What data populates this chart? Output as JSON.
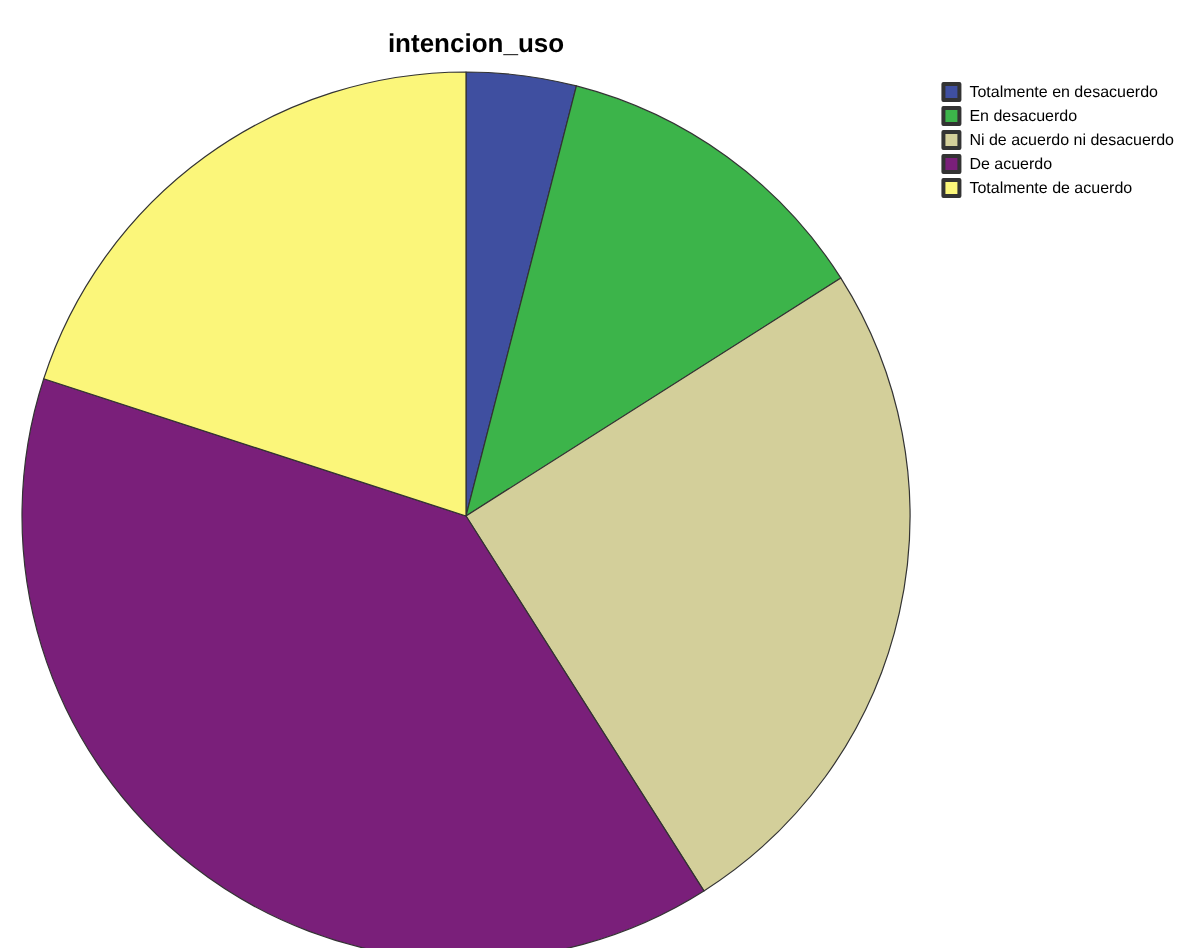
{
  "chart_data": {
    "type": "pie",
    "title": "intencion_uso",
    "categories": [
      "Totalmente en desacuerdo",
      "En desacuerdo",
      "Ni de acuerdo ni desacuerdo",
      "De acuerdo",
      "Totalmente de acuerdo"
    ],
    "values": [
      4,
      12,
      25,
      39,
      20
    ],
    "colors": [
      "#3f4fa0",
      "#3cb44a",
      "#d3cf9a",
      "#7a1f7a",
      "#fbf67a"
    ],
    "legend": "top right"
  }
}
